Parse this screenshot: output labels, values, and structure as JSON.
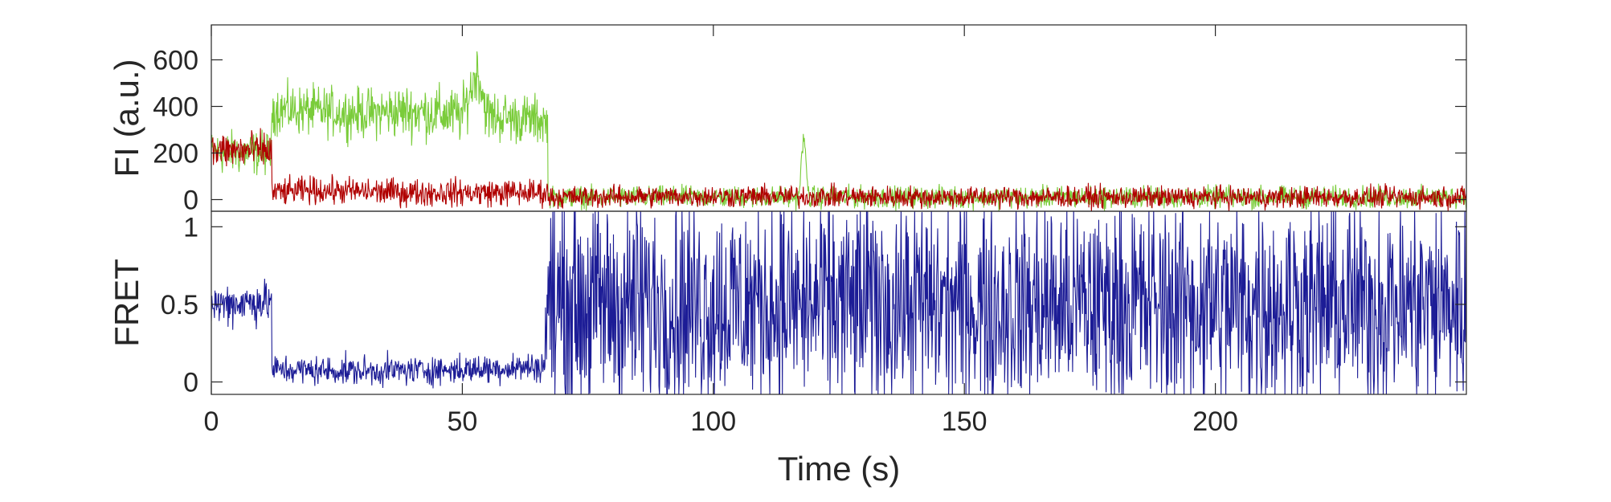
{
  "colors": {
    "donor": "#7acc3a",
    "acceptor": "#b00000",
    "fret": "#1c1c96",
    "axis": "#262626"
  },
  "chart_data": [
    {
      "type": "line",
      "panel": "fluorescence",
      "ylabel": "FI (a.u.)",
      "xlim": [
        0,
        250
      ],
      "ylim": [
        -50,
        750
      ],
      "yticks": [
        0,
        200,
        400,
        600
      ],
      "ytick_labels": [
        "0",
        "200",
        "400",
        "600"
      ],
      "series": [
        {
          "color": "#7acc3a",
          "x": [
            0,
            12,
            12,
            20,
            30,
            40,
            50,
            53,
            55,
            60,
            66,
            67,
            67,
            100,
            117,
            118,
            119,
            120,
            150,
            200,
            250
          ],
          "y": [
            200,
            200,
            390,
            380,
            370,
            380,
            360,
            560,
            360,
            350,
            340,
            330,
            10,
            10,
            10,
            280,
            10,
            10,
            10,
            10,
            10
          ],
          "noise": [
            80,
            80,
            90,
            90,
            90,
            100,
            100,
            100,
            100,
            90,
            90,
            60,
            40,
            40,
            40,
            30,
            40,
            40,
            40,
            40,
            40
          ]
        },
        {
          "color": "#b00000",
          "x": [
            0,
            12,
            12,
            20,
            40,
            60,
            67,
            67,
            100,
            150,
            200,
            250
          ],
          "y": [
            210,
            210,
            30,
            40,
            30,
            30,
            30,
            10,
            15,
            10,
            10,
            10
          ],
          "noise": [
            70,
            70,
            50,
            50,
            50,
            50,
            50,
            40,
            40,
            40,
            40,
            40
          ]
        }
      ]
    },
    {
      "type": "line",
      "panel": "fret",
      "xlabel": "Time (s)",
      "ylabel": "FRET",
      "xlim": [
        0,
        250
      ],
      "ylim": [
        -0.08,
        1.1
      ],
      "xticks": [
        0,
        50,
        100,
        150,
        200
      ],
      "xtick_labels": [
        "0",
        "50",
        "100",
        "150",
        "200"
      ],
      "yticks": [
        0,
        0.5,
        1
      ],
      "ytick_labels": [
        "0",
        "0.5",
        "1"
      ],
      "series": [
        {
          "color": "#1c1c96",
          "x": [
            0,
            12,
            12,
            30,
            50,
            66.5,
            66.5,
            100,
            150,
            200,
            250
          ],
          "y": [
            0.5,
            0.52,
            0.08,
            0.07,
            0.08,
            0.1,
            0.5,
            0.5,
            0.5,
            0.5,
            0.5
          ],
          "noise": [
            0.12,
            0.12,
            0.08,
            0.08,
            0.08,
            0.08,
            0.6,
            0.6,
            0.6,
            0.6,
            0.6
          ]
        }
      ]
    }
  ]
}
